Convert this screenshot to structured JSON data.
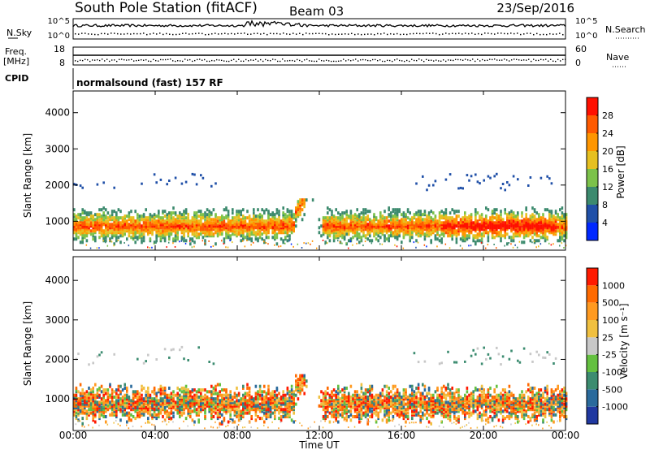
{
  "header": {
    "title": "South Pole Station (fitACF)",
    "beam": "Beam 03",
    "date": "23/Sep/2016",
    "cpid_label": "CPID",
    "cpid_value": "normalsound (fast) 157 RF"
  },
  "chart_data": [
    {
      "type": "line",
      "panel": "noise",
      "left_label": "N.Sky",
      "right_label": "N.Search",
      "left_ticks": [
        "10^5",
        "10^0"
      ],
      "right_ticks": [
        "10^5",
        "10^0"
      ]
    },
    {
      "type": "line",
      "panel": "frequency",
      "left_label_line1": "Freq.",
      "left_label_line2": "[MHz]",
      "right_label": "Nave",
      "left_ticks": [
        "18",
        "8"
      ],
      "right_ticks": [
        "60",
        "0"
      ],
      "ylim_left": [
        8,
        18
      ],
      "ylim_right": [
        0,
        60
      ]
    },
    {
      "type": "heatmap",
      "panel": "power",
      "ylabel": "Slant Range [km]",
      "ylim": [
        200,
        4600
      ],
      "yticks": [
        1000,
        2000,
        3000,
        4000
      ],
      "xlim": [
        0,
        24
      ],
      "colorbar_label": "Power [dB]",
      "colorbar_ticks": [
        "4",
        "8",
        "12",
        "16",
        "20",
        "24",
        "28"
      ],
      "colorbar_colors": [
        "#0028ff",
        "#2050a8",
        "#3c8a6e",
        "#7cc24a",
        "#e6c020",
        "#ff9600",
        "#ff5a00",
        "#ff1000"
      ]
    },
    {
      "type": "heatmap",
      "panel": "velocity",
      "ylabel": "Slant Range [km]",
      "ylim": [
        200,
        4600
      ],
      "yticks": [
        1000,
        2000,
        3000,
        4000
      ],
      "xlim": [
        0,
        24
      ],
      "colorbar_label": "Velocity [m s⁻¹]",
      "colorbar_ticks": [
        "1000",
        "500",
        "100",
        "25",
        "-25",
        "-100",
        "-500",
        "-1000"
      ],
      "colorbar_colors": [
        "#2038a0",
        "#2a6a9c",
        "#3c8c70",
        "#64c040",
        "#c8c8c8",
        "#f0c040",
        "#ff9a20",
        "#ff6a00",
        "#ff1a00"
      ]
    }
  ],
  "xaxis": {
    "label": "Time UT",
    "ticks": [
      "00:00",
      "04:00",
      "08:00",
      "12:00",
      "16:00",
      "20:00",
      "00:00"
    ]
  }
}
